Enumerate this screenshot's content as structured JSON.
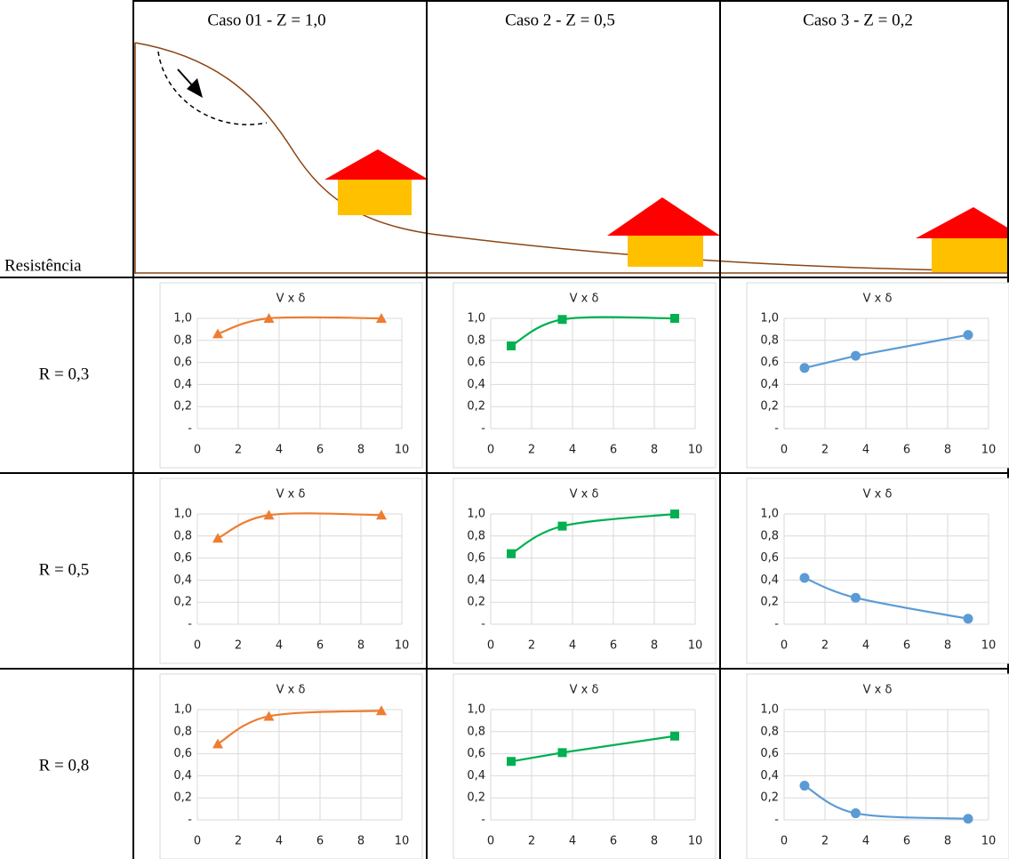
{
  "table": {
    "corner": "Resistência",
    "columns": [
      "Caso 01 - Z  = 1,0",
      "Caso 2 - Z = 0,5",
      "Caso 3 - Z = 0,2"
    ],
    "rows": [
      "R = 0,3",
      "R = 0,5",
      "R = 0,8"
    ]
  },
  "chart_data": [
    {
      "type": "scatter",
      "title": "V x δ",
      "x": [
        1,
        3.5,
        9
      ],
      "values": [
        0.86,
        1.0,
        1.0
      ],
      "color": "#ed7d31",
      "marker": "triangle",
      "smooth": true,
      "xlim": [
        0,
        10
      ],
      "ylim": [
        0,
        1
      ],
      "xticks": [
        0,
        2,
        4,
        6,
        8,
        10
      ],
      "yticks": [
        {
          "value": 0,
          "label": "-"
        },
        {
          "value": 0.2,
          "label": "0,2"
        },
        {
          "value": 0.4,
          "label": "0,4"
        },
        {
          "value": 0.6,
          "label": "0,6"
        },
        {
          "value": 0.8,
          "label": "0,8"
        },
        {
          "value": 1,
          "label": "1,0"
        }
      ],
      "grid": true
    },
    {
      "type": "scatter",
      "title": "V x δ",
      "x": [
        1,
        3.5,
        9
      ],
      "values": [
        0.75,
        0.99,
        1.0
      ],
      "color": "#00b050",
      "marker": "square",
      "smooth": true,
      "xlim": [
        0,
        10
      ],
      "ylim": [
        0,
        1
      ],
      "xticks": [
        0,
        2,
        4,
        6,
        8,
        10
      ],
      "yticks": [
        {
          "value": 0,
          "label": "-"
        },
        {
          "value": 0.2,
          "label": "0,2"
        },
        {
          "value": 0.4,
          "label": "0,4"
        },
        {
          "value": 0.6,
          "label": "0,6"
        },
        {
          "value": 0.8,
          "label": "0,8"
        },
        {
          "value": 1,
          "label": "1,0"
        }
      ],
      "grid": true
    },
    {
      "type": "scatter",
      "title": "V x δ",
      "x": [
        1,
        3.5,
        9
      ],
      "values": [
        0.55,
        0.66,
        0.85
      ],
      "color": "#5b9bd5",
      "marker": "circle",
      "smooth": false,
      "xlim": [
        0,
        10
      ],
      "ylim": [
        0,
        1
      ],
      "xticks": [
        0,
        2,
        4,
        6,
        8,
        10
      ],
      "yticks": [
        {
          "value": 0,
          "label": "-"
        },
        {
          "value": 0.2,
          "label": "0,2"
        },
        {
          "value": 0.4,
          "label": "0,4"
        },
        {
          "value": 0.6,
          "label": "0,6"
        },
        {
          "value": 0.8,
          "label": "0,8"
        },
        {
          "value": 1,
          "label": "1,0"
        }
      ],
      "grid": true
    },
    {
      "type": "scatter",
      "title": "V x δ",
      "x": [
        1,
        3.5,
        9
      ],
      "values": [
        0.78,
        0.99,
        0.99
      ],
      "color": "#ed7d31",
      "marker": "triangle",
      "smooth": true,
      "xlim": [
        0,
        10
      ],
      "ylim": [
        0,
        1
      ],
      "xticks": [
        0,
        2,
        4,
        6,
        8,
        10
      ],
      "yticks": [
        {
          "value": 0,
          "label": "-"
        },
        {
          "value": 0.2,
          "label": "0,2"
        },
        {
          "value": 0.4,
          "label": "0,4"
        },
        {
          "value": 0.6,
          "label": "0,6"
        },
        {
          "value": 0.8,
          "label": "0,8"
        },
        {
          "value": 1,
          "label": "1,0"
        }
      ],
      "grid": true
    },
    {
      "type": "scatter",
      "title": "V x δ",
      "x": [
        1,
        3.5,
        9
      ],
      "values": [
        0.64,
        0.89,
        1.0
      ],
      "color": "#00b050",
      "marker": "square",
      "smooth": true,
      "xlim": [
        0,
        10
      ],
      "ylim": [
        0,
        1
      ],
      "xticks": [
        0,
        2,
        4,
        6,
        8,
        10
      ],
      "yticks": [
        {
          "value": 0,
          "label": "-"
        },
        {
          "value": 0.2,
          "label": "0,2"
        },
        {
          "value": 0.4,
          "label": "0,4"
        },
        {
          "value": 0.6,
          "label": "0,6"
        },
        {
          "value": 0.8,
          "label": "0,8"
        },
        {
          "value": 1,
          "label": "1,0"
        }
      ],
      "grid": true
    },
    {
      "type": "scatter",
      "title": "V x δ",
      "x": [
        1,
        3.5,
        9
      ],
      "values": [
        0.42,
        0.24,
        0.05
      ],
      "color": "#5b9bd5",
      "marker": "circle",
      "smooth": true,
      "xlim": [
        0,
        10
      ],
      "ylim": [
        0,
        1
      ],
      "xticks": [
        0,
        2,
        4,
        6,
        8,
        10
      ],
      "yticks": [
        {
          "value": 0,
          "label": "-"
        },
        {
          "value": 0.2,
          "label": "0,2"
        },
        {
          "value": 0.4,
          "label": "0,4"
        },
        {
          "value": 0.6,
          "label": "0,6"
        },
        {
          "value": 0.8,
          "label": "0,8"
        },
        {
          "value": 1,
          "label": "1,0"
        }
      ],
      "grid": true
    },
    {
      "type": "scatter",
      "title": "V x δ",
      "x": [
        1,
        3.5,
        9
      ],
      "values": [
        0.69,
        0.94,
        0.99
      ],
      "color": "#ed7d31",
      "marker": "triangle",
      "smooth": true,
      "xlim": [
        0,
        10
      ],
      "ylim": [
        0,
        1
      ],
      "xticks": [
        0,
        2,
        4,
        6,
        8,
        10
      ],
      "yticks": [
        {
          "value": 0,
          "label": "-"
        },
        {
          "value": 0.2,
          "label": "0,2"
        },
        {
          "value": 0.4,
          "label": "0,4"
        },
        {
          "value": 0.6,
          "label": "0,6"
        },
        {
          "value": 0.8,
          "label": "0,8"
        },
        {
          "value": 1,
          "label": "1,0"
        }
      ],
      "grid": true
    },
    {
      "type": "scatter",
      "title": "V x δ",
      "x": [
        1,
        3.5,
        9
      ],
      "values": [
        0.53,
        0.61,
        0.76
      ],
      "color": "#00b050",
      "marker": "square",
      "smooth": false,
      "xlim": [
        0,
        10
      ],
      "ylim": [
        0,
        1
      ],
      "xticks": [
        0,
        2,
        4,
        6,
        8,
        10
      ],
      "yticks": [
        {
          "value": 0,
          "label": "-"
        },
        {
          "value": 0.2,
          "label": "0,2"
        },
        {
          "value": 0.4,
          "label": "0,4"
        },
        {
          "value": 0.6,
          "label": "0,6"
        },
        {
          "value": 0.8,
          "label": "0,8"
        },
        {
          "value": 1,
          "label": "1,0"
        }
      ],
      "grid": true
    },
    {
      "type": "scatter",
      "title": "V x δ",
      "x": [
        1,
        3.5,
        9
      ],
      "values": [
        0.31,
        0.06,
        0.01
      ],
      "color": "#5b9bd5",
      "marker": "circle",
      "smooth": true,
      "xlim": [
        0,
        10
      ],
      "ylim": [
        0,
        1
      ],
      "xticks": [
        0,
        2,
        4,
        6,
        8,
        10
      ],
      "yticks": [
        {
          "value": 0,
          "label": "-"
        },
        {
          "value": 0.2,
          "label": "0,2"
        },
        {
          "value": 0.4,
          "label": "0,4"
        },
        {
          "value": 0.6,
          "label": "0,6"
        },
        {
          "value": 0.8,
          "label": "0,8"
        },
        {
          "value": 1,
          "label": "1,0"
        }
      ],
      "grid": true
    }
  ]
}
